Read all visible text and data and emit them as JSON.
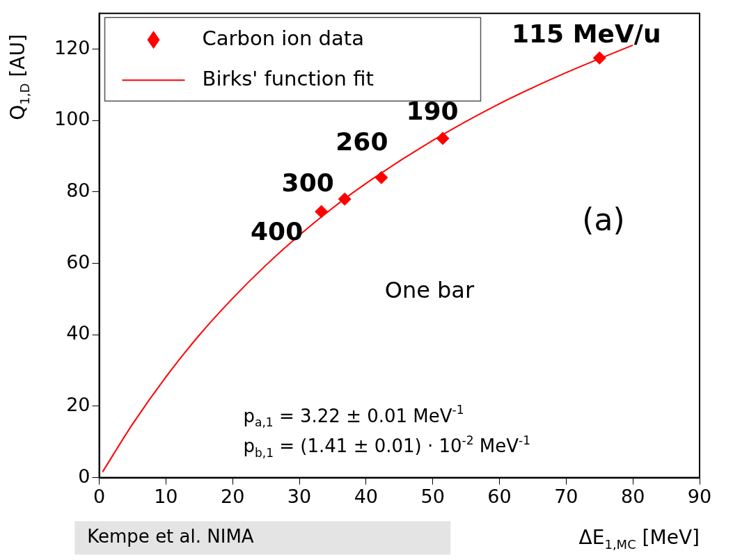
{
  "chart_data": {
    "type": "scatter",
    "xlabel": "ΔE$_{1,MC}$ [MeV]",
    "ylabel": "Q$_{1,D}$ [AU]",
    "xlim": [
      0,
      90
    ],
    "xticks": [
      0,
      10,
      20,
      30,
      40,
      50,
      60,
      70,
      80,
      90
    ],
    "ylim": [
      0,
      130
    ],
    "yticks": [
      0,
      20,
      40,
      60,
      80,
      100,
      120
    ],
    "grid": false,
    "legend": "top left",
    "marker": "diamond",
    "series": [
      {
        "name": "Carbon ion data",
        "color": "#ff0000",
        "x": [
          33.3,
          36.8,
          42.3,
          51.5,
          75
        ],
        "values": [
          74.5,
          78,
          84,
          95,
          117.5
        ]
      },
      {
        "name": "Birks' function fit",
        "type": "line",
        "color": "#ff0000",
        "marker": "none",
        "x": [
          0.5,
          5,
          10,
          15,
          20,
          25,
          30,
          35,
          40,
          50,
          60,
          70,
          80
        ],
        "values": [
          1.6,
          15,
          28.2,
          39.9,
          50.2,
          59.5,
          67.9,
          75.5,
          82.4,
          94.4,
          104.7,
          113.4,
          121.1
        ]
      }
    ],
    "annotations": [
      {
        "text": "400",
        "x": 33.3,
        "y": 74.5
      },
      {
        "text": "300",
        "x": 36.8,
        "y": 78
      },
      {
        "text": "260",
        "x": 42.3,
        "y": 84
      },
      {
        "text": "190",
        "x": 51.5,
        "y": 95
      },
      {
        "text": "115 MeV/u",
        "x": 75,
        "y": 117.5
      },
      "(a)",
      "One bar",
      "p$_{a,1}$ = 3.22 ± 0.01 MeV$^{-1}$",
      "p$_{b,1}$ = (1.41 ± 0.01) · 10$^{-2}$ MeV$^{-1}$",
      "Kempe et al. NIMA"
    ]
  }
}
